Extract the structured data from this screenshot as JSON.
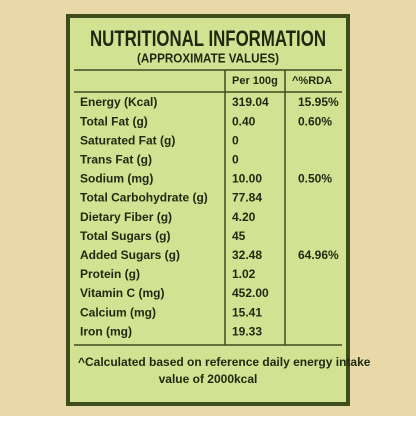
{
  "header": {
    "title": "NUTRITIONAL INFORMATION",
    "subtitle": "(APPROXIMATE VALUES)"
  },
  "table": {
    "columns": [
      "Per 100g",
      "^%RDA"
    ],
    "rows": [
      {
        "nutrient": "Energy (Kcal)",
        "per_100g": "319.04",
        "rda": "15.95%"
      },
      {
        "nutrient": "Total Fat (g)",
        "per_100g": "0.40",
        "rda": "0.60%"
      },
      {
        "nutrient": "Saturated Fat (g)",
        "per_100g": "0"
      },
      {
        "nutrient": "Trans Fat (g)",
        "per_100g": "0"
      },
      {
        "nutrient": "Sodium (mg)",
        "per_100g": "10.00",
        "rda": "0.50%"
      },
      {
        "nutrient": "Total Carbohydrate (g)",
        "per_100g": "77.84"
      },
      {
        "nutrient": "Dietary Fiber (g)",
        "per_100g": "4.20"
      },
      {
        "nutrient": "Total Sugars (g)",
        "per_100g": "45"
      },
      {
        "nutrient": "Added Sugars (g)",
        "per_100g": "32.48",
        "rda": "64.96%"
      },
      {
        "nutrient": "Protein (g)",
        "per_100g": "1.02"
      },
      {
        "nutrient": "Vitamin C (mg)",
        "per_100g": "452.00"
      },
      {
        "nutrient": "Calcium (mg)",
        "per_100g": "15.41"
      },
      {
        "nutrient": "Iron (mg)",
        "per_100g": "19.33"
      }
    ]
  },
  "footnote": [
    "^Calculated based on reference daily energy intake",
    "value of 2000kcal"
  ]
}
